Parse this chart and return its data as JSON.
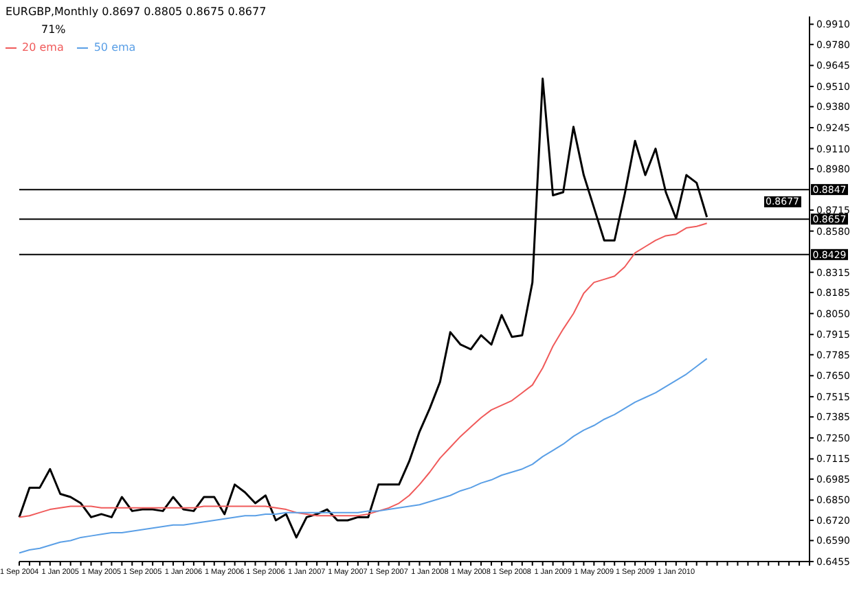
{
  "chart_data": {
    "type": "line",
    "title": "EURGBP,Monthly  0.8697 0.8805 0.8675 0.8677",
    "categories": [
      "1 Sep 2004",
      null,
      null,
      null,
      "1 Jan 2005",
      null,
      null,
      null,
      "1 May 2005",
      null,
      null,
      null,
      "1 Sep 2005",
      null,
      null,
      null,
      "1 Jan 2006",
      null,
      null,
      null,
      "1 May 2006",
      null,
      null,
      null,
      "1 Sep 2006",
      null,
      null,
      null,
      "1 Jan 2007",
      null,
      null,
      null,
      "1 May 2007",
      null,
      null,
      null,
      "1 Sep 2007",
      null,
      null,
      null,
      "1 Jan 2008",
      null,
      null,
      null,
      "1 May 2008",
      null,
      null,
      null,
      "1 Sep 2008",
      null,
      null,
      null,
      "1 Jan 2009",
      null,
      null,
      null,
      "1 May 2009",
      null,
      null,
      null,
      "1 Sep 2009",
      null,
      null,
      null,
      "1 Jan 2010",
      null,
      null,
      null,
      null,
      null,
      null,
      null,
      null,
      null,
      null,
      null,
      null,
      null
    ],
    "series": [
      {
        "color": "#000000",
        "values": [
          0.674,
          0.693,
          0.693,
          0.705,
          0.689,
          0.687,
          0.683,
          0.674,
          0.676,
          0.674,
          0.687,
          0.678,
          0.679,
          0.679,
          0.678,
          0.687,
          0.679,
          0.678,
          0.687,
          0.687,
          0.676,
          0.695,
          0.69,
          0.683,
          0.688,
          0.672,
          0.676,
          0.661,
          0.674,
          0.676,
          0.679,
          0.672,
          0.672,
          0.674,
          0.674,
          0.695,
          0.695,
          0.695,
          0.71,
          0.729,
          0.744,
          0.761,
          0.793,
          0.785,
          0.782,
          0.791,
          0.785,
          0.804,
          0.79,
          0.791,
          0.825,
          0.956,
          0.881,
          0.883,
          0.925,
          0.894,
          0.873,
          0.852,
          0.852,
          0.882,
          0.916,
          0.894,
          0.911,
          0.883,
          0.866,
          0.894,
          0.889,
          0.867,
          null,
          null,
          null,
          null,
          null,
          null,
          null,
          null,
          null,
          null
        ]
      },
      {
        "name": "20 ema",
        "color": "#f05a5a",
        "values": [
          0.674,
          0.675,
          0.677,
          0.679,
          0.68,
          0.681,
          0.681,
          0.681,
          0.68,
          0.68,
          0.68,
          0.68,
          0.68,
          0.68,
          0.68,
          0.68,
          0.68,
          0.68,
          0.681,
          0.681,
          0.681,
          0.681,
          0.681,
          0.681,
          0.681,
          0.68,
          0.679,
          0.677,
          0.676,
          0.675,
          0.675,
          0.675,
          0.675,
          0.675,
          0.676,
          0.678,
          0.68,
          0.683,
          0.688,
          0.695,
          0.703,
          0.712,
          0.719,
          0.726,
          0.732,
          0.738,
          0.743,
          0.746,
          0.749,
          0.754,
          0.759,
          0.77,
          0.784,
          0.795,
          0.805,
          0.818,
          0.825,
          0.827,
          0.829,
          0.835,
          0.844,
          0.848,
          0.852,
          0.855,
          0.856,
          0.86,
          0.861,
          0.863,
          null,
          null,
          null,
          null,
          null,
          null,
          null,
          null,
          null,
          null
        ]
      },
      {
        "name": "50 ema",
        "color": "#5a9fe6",
        "values": [
          0.651,
          0.653,
          0.654,
          0.656,
          0.658,
          0.659,
          0.661,
          0.662,
          0.663,
          0.664,
          0.664,
          0.665,
          0.666,
          0.667,
          0.668,
          0.669,
          0.669,
          0.67,
          0.671,
          0.672,
          0.673,
          0.674,
          0.675,
          0.675,
          0.676,
          0.676,
          0.677,
          0.677,
          0.677,
          0.677,
          0.677,
          0.677,
          0.677,
          0.677,
          0.678,
          0.678,
          0.679,
          0.68,
          0.681,
          0.682,
          0.684,
          0.686,
          0.688,
          0.691,
          0.693,
          0.696,
          0.698,
          0.701,
          0.703,
          0.705,
          0.708,
          0.713,
          0.717,
          0.721,
          0.726,
          0.73,
          0.733,
          0.737,
          0.74,
          0.744,
          0.748,
          0.751,
          0.754,
          0.758,
          0.762,
          0.766,
          0.771,
          0.776,
          null,
          null,
          null,
          null,
          null,
          null,
          null,
          null,
          null,
          null
        ]
      }
    ],
    "ylim": [
      0.6455,
      0.996
    ],
    "yticks": [
      {
        "value": 0.6455,
        "label": "0.6455"
      },
      {
        "value": 0.659,
        "label": "0.6590"
      },
      {
        "value": 0.672,
        "label": "0.6720"
      },
      {
        "value": 0.685,
        "label": "0.6850"
      },
      {
        "value": 0.6985,
        "label": "0.6985"
      },
      {
        "value": 0.7115,
        "label": "0.7115"
      },
      {
        "value": 0.725,
        "label": "0.7250"
      },
      {
        "value": 0.7385,
        "label": "0.7385"
      },
      {
        "value": 0.7515,
        "label": "0.7515"
      },
      {
        "value": 0.765,
        "label": "0.7650"
      },
      {
        "value": 0.7785,
        "label": "0.7785"
      },
      {
        "value": 0.7915,
        "label": "0.7915"
      },
      {
        "value": 0.805,
        "label": "0.8050"
      },
      {
        "value": 0.8185,
        "label": "0.8185"
      },
      {
        "value": 0.8315,
        "label": "0.8315"
      },
      {
        "value": 0.858,
        "label": "0.8580"
      },
      {
        "value": 0.8715,
        "label": "0.8715"
      },
      {
        "value": 0.898,
        "label": "0.8980"
      },
      {
        "value": 0.911,
        "label": "0.9110"
      },
      {
        "value": 0.9245,
        "label": "0.9245"
      },
      {
        "value": 0.938,
        "label": "0.9380"
      },
      {
        "value": 0.951,
        "label": "0.9510"
      },
      {
        "value": 0.9645,
        "label": "0.9645"
      },
      {
        "value": 0.978,
        "label": "0.9780"
      },
      {
        "value": 0.991,
        "label": "0.9910"
      }
    ],
    "ref_lines": [
      {
        "axis": "y",
        "value": 0.8847,
        "label": "0.8847",
        "color": "#000000"
      },
      {
        "axis": "y",
        "value": 0.8657,
        "label": "0.8657",
        "color": "#000000"
      },
      {
        "axis": "y",
        "value": 0.8429,
        "label": "0.8429",
        "color": "#000000"
      }
    ],
    "annotations": [
      "71%",
      "0.8677"
    ],
    "legend": "top left",
    "marker": "none"
  }
}
